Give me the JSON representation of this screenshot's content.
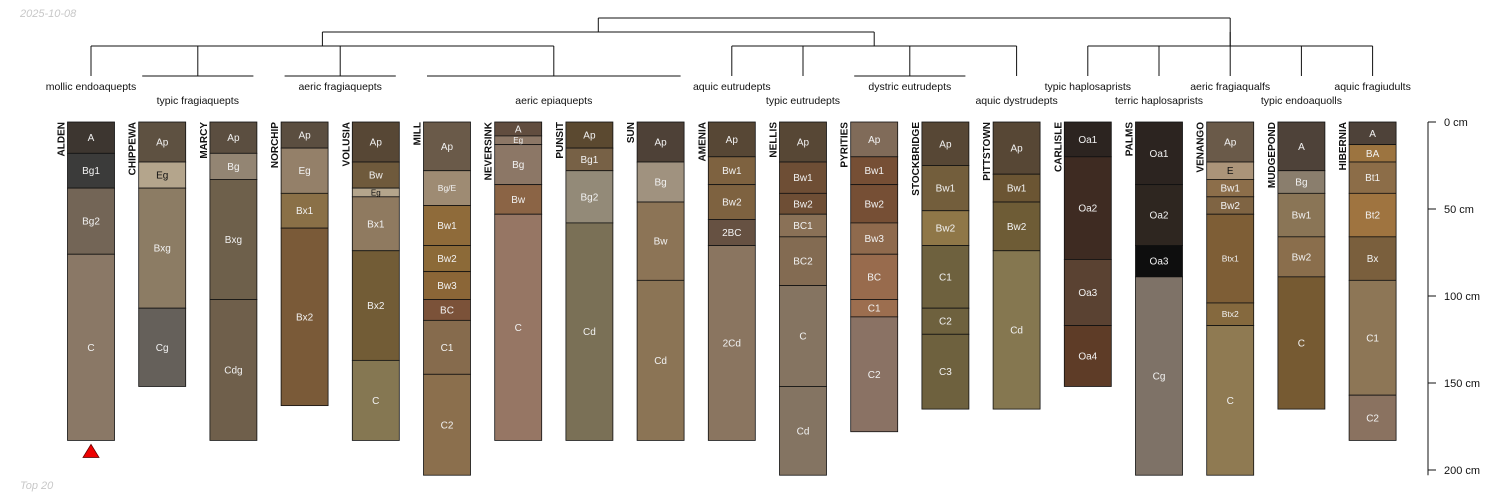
{
  "header_date": "2025-10-08",
  "footer_note": "Top 20",
  "chart_data": {
    "type": "soil-profile-sketch",
    "depth_unit": "cm",
    "depth_ticks": [
      0,
      50,
      100,
      150,
      200
    ],
    "depth_tick_labels": [
      "0 cm",
      "50 cm",
      "100 cm",
      "150 cm",
      "200 cm"
    ],
    "highlighted_profile": "ALDEN",
    "taxa": [
      {
        "label": "mollic endoaquepts",
        "members": [
          "ALDEN"
        ]
      },
      {
        "label": "typic fragiaquepts",
        "members": [
          "CHIPPEWA",
          "MARCY"
        ]
      },
      {
        "label": "aeric fragiaquepts",
        "members": [
          "NORCHIP",
          "VOLUSIA"
        ]
      },
      {
        "label": "aeric epiaquepts",
        "members": [
          "MILL",
          "NEVERSINK",
          "PUNSIT",
          "SUN"
        ]
      },
      {
        "label": "aquic eutrudepts",
        "members": [
          "AMENIA"
        ]
      },
      {
        "label": "typic eutrudepts",
        "members": [
          "NELLIS"
        ]
      },
      {
        "label": "dystric eutrudepts",
        "members": [
          "PYRITIES",
          "STOCKBRIDGE"
        ]
      },
      {
        "label": "aquic dystrudepts",
        "members": [
          "PITTSTOWN"
        ]
      },
      {
        "label": "typic haplosaprists",
        "members": [
          "CARLISLE"
        ]
      },
      {
        "label": "terric haplosaprists",
        "members": [
          "PALMS"
        ]
      },
      {
        "label": "aeric fragiaqualfs",
        "members": [
          "VENANGO"
        ]
      },
      {
        "label": "typic endoaquolls",
        "members": [
          "MUDGEPOND"
        ]
      },
      {
        "label": "aquic fragiudults",
        "members": [
          "HIBERNIA"
        ]
      }
    ],
    "profiles": [
      {
        "name": "ALDEN",
        "horizons": [
          {
            "name": "A",
            "top": 0,
            "bottom": 18,
            "color": "#3d3630"
          },
          {
            "name": "Bg1",
            "top": 18,
            "bottom": 38,
            "color": "#3b3b3a"
          },
          {
            "name": "Bg2",
            "top": 38,
            "bottom": 76,
            "color": "#736556"
          },
          {
            "name": "C",
            "top": 76,
            "bottom": 183,
            "color": "#8a7866"
          }
        ]
      },
      {
        "name": "CHIPPEWA",
        "horizons": [
          {
            "name": "Ap",
            "top": 0,
            "bottom": 23,
            "color": "#5e5141"
          },
          {
            "name": "Eg",
            "top": 23,
            "bottom": 38,
            "color": "#b4a58c"
          },
          {
            "name": "Bxg",
            "top": 38,
            "bottom": 107,
            "color": "#8c7c64"
          },
          {
            "name": "Cg",
            "top": 107,
            "bottom": 152,
            "color": "#65605a"
          }
        ]
      },
      {
        "name": "MARCY",
        "horizons": [
          {
            "name": "Ap",
            "top": 0,
            "bottom": 18,
            "color": "#5b4e40"
          },
          {
            "name": "Bg",
            "top": 18,
            "bottom": 33,
            "color": "#938573"
          },
          {
            "name": "Bxg",
            "top": 33,
            "bottom": 102,
            "color": "#6e604b"
          },
          {
            "name": "Cdg",
            "top": 102,
            "bottom": 183,
            "color": "#6f5f4b"
          }
        ]
      },
      {
        "name": "NORCHIP",
        "horizons": [
          {
            "name": "Ap",
            "top": 0,
            "bottom": 15,
            "color": "#5b4e40"
          },
          {
            "name": "Eg",
            "top": 15,
            "bottom": 41,
            "color": "#948069"
          },
          {
            "name": "Bx1",
            "top": 41,
            "bottom": 61,
            "color": "#8a7047"
          },
          {
            "name": "Bx2",
            "top": 61,
            "bottom": 163,
            "color": "#7a5a38"
          }
        ]
      },
      {
        "name": "VOLUSIA",
        "horizons": [
          {
            "name": "Ap",
            "top": 0,
            "bottom": 23,
            "color": "#574735"
          },
          {
            "name": "Bw",
            "top": 23,
            "bottom": 38,
            "color": "#6f5a3c"
          },
          {
            "name": "Eg",
            "top": 38,
            "bottom": 43,
            "color": "#b4a58c"
          },
          {
            "name": "Bx1",
            "top": 43,
            "bottom": 74,
            "color": "#8f7a60"
          },
          {
            "name": "Bx2",
            "top": 74,
            "bottom": 137,
            "color": "#725c36"
          },
          {
            "name": "C",
            "top": 137,
            "bottom": 183,
            "color": "#857752"
          }
        ]
      },
      {
        "name": "MILL",
        "horizons": [
          {
            "name": "Ap",
            "top": 0,
            "bottom": 28,
            "color": "#6a5a49"
          },
          {
            "name": "Bg/E",
            "top": 28,
            "bottom": 48,
            "color": "#9e8b73"
          },
          {
            "name": "Bw1",
            "top": 48,
            "bottom": 71,
            "color": "#8f6b3a"
          },
          {
            "name": "Bw2",
            "top": 71,
            "bottom": 86,
            "color": "#8c6a38"
          },
          {
            "name": "Bw3",
            "top": 86,
            "bottom": 102,
            "color": "#8b6637"
          },
          {
            "name": "BC",
            "top": 102,
            "bottom": 114,
            "color": "#7b5239"
          },
          {
            "name": "C1",
            "top": 114,
            "bottom": 145,
            "color": "#866b4d"
          },
          {
            "name": "C2",
            "top": 145,
            "bottom": 203,
            "color": "#8b6f4d"
          }
        ]
      },
      {
        "name": "NEVERSINK",
        "horizons": [
          {
            "name": "A",
            "top": 0,
            "bottom": 8,
            "color": "#614d3f"
          },
          {
            "name": "Eg",
            "top": 8,
            "bottom": 13,
            "color": "#8c7766"
          },
          {
            "name": "Bg",
            "top": 13,
            "bottom": 36,
            "color": "#8c7766"
          },
          {
            "name": "Bw",
            "top": 36,
            "bottom": 53,
            "color": "#8b6445"
          },
          {
            "name": "C",
            "top": 53,
            "bottom": 183,
            "color": "#967664"
          }
        ]
      },
      {
        "name": "PUNSIT",
        "horizons": [
          {
            "name": "Ap",
            "top": 0,
            "bottom": 15,
            "color": "#5b4930"
          },
          {
            "name": "Bg1",
            "top": 15,
            "bottom": 28,
            "color": "#776146"
          },
          {
            "name": "Bg2",
            "top": 28,
            "bottom": 58,
            "color": "#938a78"
          },
          {
            "name": "Cd",
            "top": 58,
            "bottom": 183,
            "color": "#7a7056"
          }
        ]
      },
      {
        "name": "SUN",
        "horizons": [
          {
            "name": "Ap",
            "top": 0,
            "bottom": 23,
            "color": "#4e4137"
          },
          {
            "name": "Bg",
            "top": 23,
            "bottom": 46,
            "color": "#a0927f"
          },
          {
            "name": "Bw",
            "top": 46,
            "bottom": 91,
            "color": "#8c7456"
          },
          {
            "name": "Cd",
            "top": 91,
            "bottom": 183,
            "color": "#8b7455"
          }
        ]
      },
      {
        "name": "AMENIA",
        "horizons": [
          {
            "name": "Ap",
            "top": 0,
            "bottom": 20,
            "color": "#574735"
          },
          {
            "name": "Bw1",
            "top": 20,
            "bottom": 36,
            "color": "#7e6240"
          },
          {
            "name": "Bw2",
            "top": 36,
            "bottom": 56,
            "color": "#7e6240"
          },
          {
            "name": "2BC",
            "top": 56,
            "bottom": 71,
            "color": "#665142"
          },
          {
            "name": "2Cd",
            "top": 71,
            "bottom": 183,
            "color": "#8a7560"
          }
        ]
      },
      {
        "name": "NELLIS",
        "horizons": [
          {
            "name": "Ap",
            "top": 0,
            "bottom": 23,
            "color": "#574735"
          },
          {
            "name": "Bw1",
            "top": 23,
            "bottom": 41,
            "color": "#6e4e35"
          },
          {
            "name": "Bw2",
            "top": 41,
            "bottom": 53,
            "color": "#6e4e35"
          },
          {
            "name": "BC1",
            "top": 53,
            "bottom": 66,
            "color": "#8a7157"
          },
          {
            "name": "BC2",
            "top": 66,
            "bottom": 94,
            "color": "#836b52"
          },
          {
            "name": "C",
            "top": 94,
            "bottom": 152,
            "color": "#857461"
          },
          {
            "name": "Cd",
            "top": 152,
            "bottom": 203,
            "color": "#847462"
          }
        ]
      },
      {
        "name": "PYRITIES",
        "horizons": [
          {
            "name": "Ap",
            "top": 0,
            "bottom": 20,
            "color": "#806b59"
          },
          {
            "name": "Bw1",
            "top": 20,
            "bottom": 36,
            "color": "#764f35"
          },
          {
            "name": "Bw2",
            "top": 36,
            "bottom": 58,
            "color": "#764f35"
          },
          {
            "name": "Bw3",
            "top": 58,
            "bottom": 76,
            "color": "#8f6a4d"
          },
          {
            "name": "BC",
            "top": 76,
            "bottom": 102,
            "color": "#986b4d"
          },
          {
            "name": "C1",
            "top": 102,
            "bottom": 112,
            "color": "#9c6e4f"
          },
          {
            "name": "C2",
            "top": 112,
            "bottom": 178,
            "color": "#8a7264"
          }
        ]
      },
      {
        "name": "STOCKBRIDGE",
        "horizons": [
          {
            "name": "Ap",
            "top": 0,
            "bottom": 25,
            "color": "#574735"
          },
          {
            "name": "Bw1",
            "top": 25,
            "bottom": 51,
            "color": "#735e3c"
          },
          {
            "name": "Bw2",
            "top": 51,
            "bottom": 71,
            "color": "#8f7748"
          },
          {
            "name": "C1",
            "top": 71,
            "bottom": 107,
            "color": "#6e613e"
          },
          {
            "name": "C2",
            "top": 107,
            "bottom": 122,
            "color": "#6e613e"
          },
          {
            "name": "C3",
            "top": 122,
            "bottom": 165,
            "color": "#6e613e"
          }
        ]
      },
      {
        "name": "PITTSTOWN",
        "horizons": [
          {
            "name": "Ap",
            "top": 0,
            "bottom": 30,
            "color": "#574735"
          },
          {
            "name": "Bw1",
            "top": 30,
            "bottom": 46,
            "color": "#6b5533"
          },
          {
            "name": "Bw2",
            "top": 46,
            "bottom": 74,
            "color": "#6e5c36"
          },
          {
            "name": "Cd",
            "top": 74,
            "bottom": 165,
            "color": "#857750"
          }
        ]
      },
      {
        "name": "CARLISLE",
        "horizons": [
          {
            "name": "Oa1",
            "top": 0,
            "bottom": 20,
            "color": "#2c2420"
          },
          {
            "name": "Oa2",
            "top": 20,
            "bottom": 79,
            "color": "#3e2b22"
          },
          {
            "name": "Oa3",
            "top": 79,
            "bottom": 117,
            "color": "#5a4232"
          },
          {
            "name": "Oa4",
            "top": 117,
            "bottom": 152,
            "color": "#5e3c27"
          }
        ]
      },
      {
        "name": "PALMS",
        "horizons": [
          {
            "name": "Oa1",
            "top": 0,
            "bottom": 36,
            "color": "#2c2420"
          },
          {
            "name": "Oa2",
            "top": 36,
            "bottom": 71,
            "color": "#2e2620"
          },
          {
            "name": "Oa3",
            "top": 71,
            "bottom": 89,
            "color": "#0e0e0e"
          },
          {
            "name": "Cg",
            "top": 89,
            "bottom": 203,
            "color": "#7e7267"
          }
        ]
      },
      {
        "name": "VENANGO",
        "horizons": [
          {
            "name": "Ap",
            "top": 0,
            "bottom": 23,
            "color": "#6a5a49"
          },
          {
            "name": "E",
            "top": 23,
            "bottom": 33,
            "color": "#ab9479"
          },
          {
            "name": "Bw1",
            "top": 33,
            "bottom": 43,
            "color": "#8c6e4a"
          },
          {
            "name": "Bw2",
            "top": 43,
            "bottom": 53,
            "color": "#7f6443"
          },
          {
            "name": "Btx1",
            "top": 53,
            "bottom": 104,
            "color": "#7e5e36"
          },
          {
            "name": "Btx2",
            "top": 104,
            "bottom": 117,
            "color": "#85693e"
          },
          {
            "name": "C",
            "top": 117,
            "bottom": 203,
            "color": "#8f7a52"
          }
        ]
      },
      {
        "name": "MUDGEPOND",
        "horizons": [
          {
            "name": "A",
            "top": 0,
            "bottom": 28,
            "color": "#4e4239"
          },
          {
            "name": "Bg",
            "top": 28,
            "bottom": 41,
            "color": "#8a7e6d"
          },
          {
            "name": "Bw1",
            "top": 41,
            "bottom": 66,
            "color": "#8a7556"
          },
          {
            "name": "Bw2",
            "top": 66,
            "bottom": 89,
            "color": "#8a6e4c"
          },
          {
            "name": "C",
            "top": 89,
            "bottom": 165,
            "color": "#765a32"
          }
        ]
      },
      {
        "name": "HIBERNIA",
        "horizons": [
          {
            "name": "A",
            "top": 0,
            "bottom": 13,
            "color": "#4e4239"
          },
          {
            "name": "BA",
            "top": 13,
            "bottom": 23,
            "color": "#9c7440"
          },
          {
            "name": "Bt1",
            "top": 23,
            "bottom": 41,
            "color": "#8c6d48"
          },
          {
            "name": "Bt2",
            "top": 41,
            "bottom": 66,
            "color": "#9f7440"
          },
          {
            "name": "Bx",
            "top": 66,
            "bottom": 91,
            "color": "#7a5f3d"
          },
          {
            "name": "C1",
            "top": 91,
            "bottom": 157,
            "color": "#8d7656"
          },
          {
            "name": "C2",
            "top": 157,
            "bottom": 183,
            "color": "#8a7260"
          }
        ]
      }
    ]
  }
}
